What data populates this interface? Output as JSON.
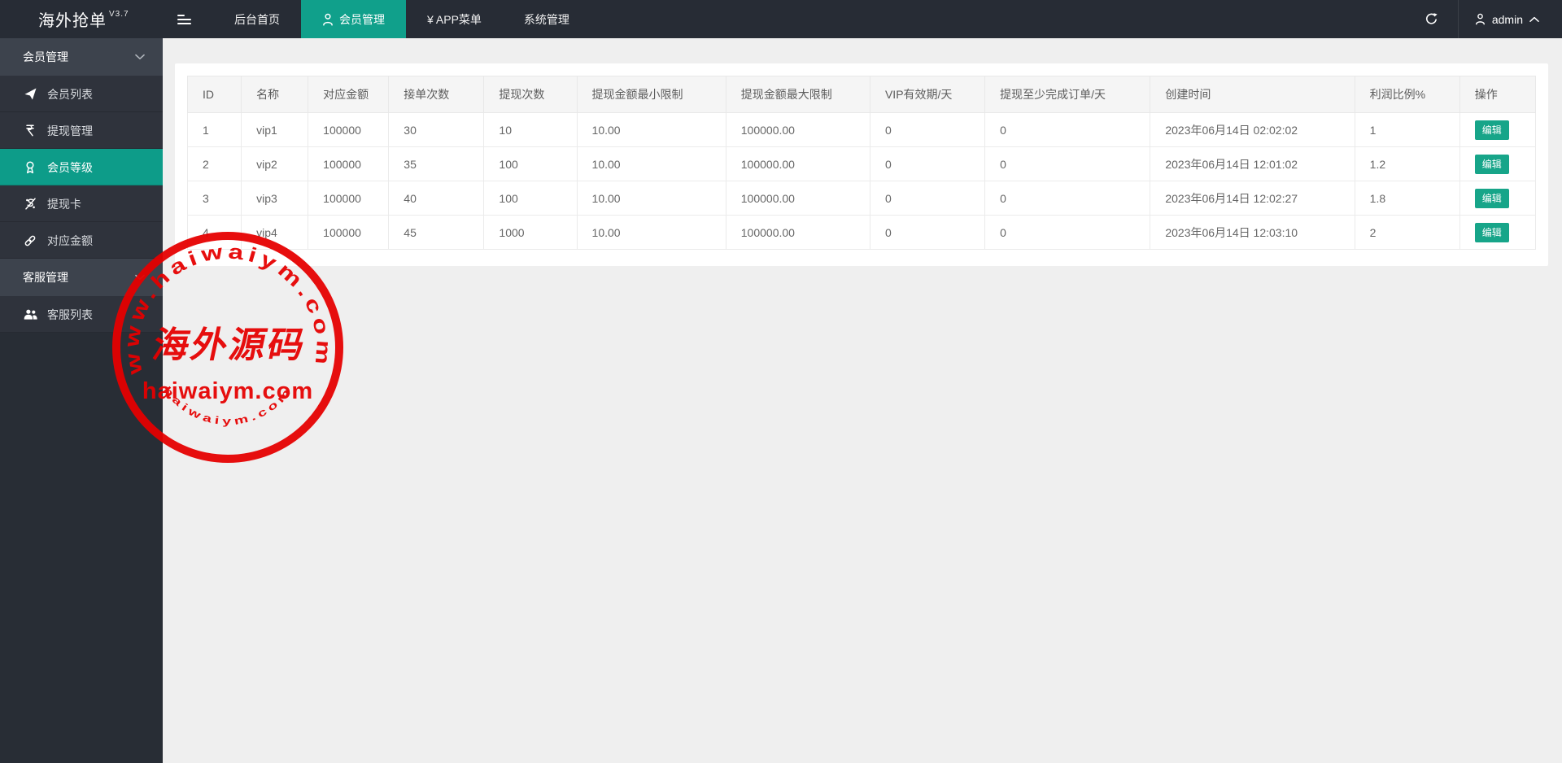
{
  "app": {
    "title": "海外抢单",
    "version": "V3.7"
  },
  "topbar": {
    "nav": [
      {
        "label": "后台首页"
      },
      {
        "label": "会员管理",
        "icon": "person-icon",
        "active": true
      },
      {
        "label": "¥ APP菜单"
      },
      {
        "label": "系统管理"
      }
    ],
    "user": {
      "name": "admin"
    }
  },
  "sidebar": {
    "sections": [
      {
        "label": "会员管理",
        "items": [
          {
            "label": "会员列表",
            "icon": "paper-plane-icon"
          },
          {
            "label": "提现管理",
            "icon": "rupee-icon"
          },
          {
            "label": "会员等级",
            "icon": "medal-icon",
            "active": true
          },
          {
            "label": "提现卡",
            "icon": "dollar-percent-icon"
          },
          {
            "label": "对应金额",
            "icon": "link-icon"
          }
        ]
      },
      {
        "label": "客服管理",
        "items": [
          {
            "label": "客服列表",
            "icon": "users-icon"
          }
        ]
      }
    ]
  },
  "table": {
    "columns": [
      "ID",
      "名称",
      "对应金额",
      "接单次数",
      "提现次数",
      "提现金额最小限制",
      "提现金额最大限制",
      "VIP有效期/天",
      "提现至少完成订单/天",
      "创建时间",
      "利润比例%",
      "操作"
    ],
    "edit_label": "编辑",
    "rows": [
      [
        "1",
        "vip1",
        "100000",
        "30",
        "10",
        "10.00",
        "100000.00",
        "0",
        "0",
        "2023年06月14日 02:02:02",
        "1"
      ],
      [
        "2",
        "vip2",
        "100000",
        "35",
        "100",
        "10.00",
        "100000.00",
        "0",
        "0",
        "2023年06月14日 12:01:02",
        "1.2"
      ],
      [
        "3",
        "vip3",
        "100000",
        "40",
        "100",
        "10.00",
        "100000.00",
        "0",
        "0",
        "2023年06月14日 12:02:27",
        "1.8"
      ],
      [
        "4",
        "vip4",
        "100000",
        "45",
        "1000",
        "10.00",
        "100000.00",
        "0",
        "0",
        "2023年06月14日 12:03:10",
        "2"
      ]
    ]
  },
  "watermark": {
    "arc_top": "www.haiwaiym.com",
    "center": "海外源码",
    "line": "haiwaiym.com",
    "arc_bottom": "haiwaiym.com"
  },
  "colors": {
    "accent_teal": "#10a08b",
    "sidebar_active": "#0d9c89",
    "edit_button": "#17a589",
    "stamp_red": "#e60000",
    "topbar_bg": "#272c35"
  }
}
